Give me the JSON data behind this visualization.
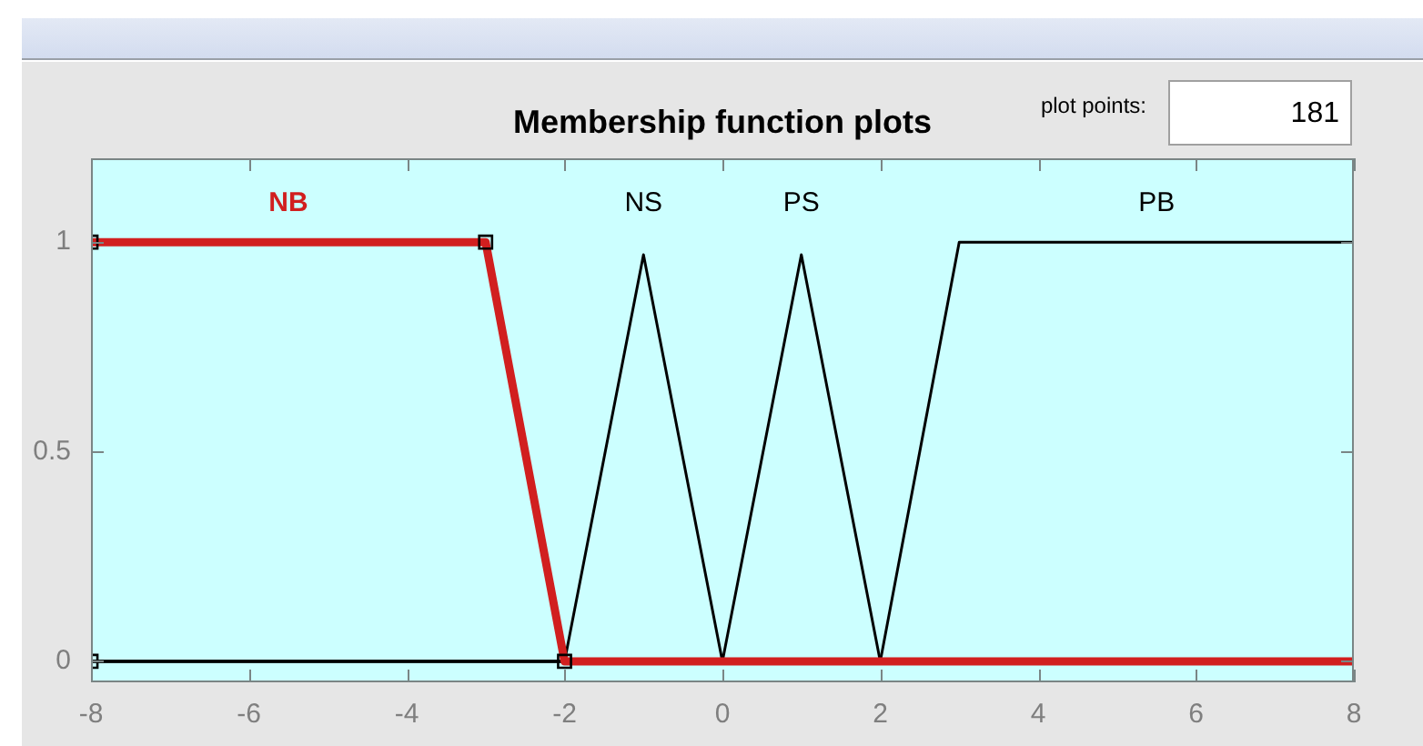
{
  "chart_data": {
    "type": "line",
    "title": "Membership function plots",
    "annotations": [
      "plot points:",
      "181"
    ],
    "xlim": [
      -8,
      8
    ],
    "xticks": [
      -8,
      -6,
      -4,
      -2,
      0,
      2,
      4,
      6,
      8
    ],
    "ylim": [
      -0.05,
      1.2
    ],
    "yticks": [
      0,
      0.5,
      1
    ],
    "series": [
      {
        "name": "NB",
        "color": "#d11f1f",
        "x": [
          -8,
          -3,
          -2,
          8
        ],
        "values": [
          1,
          1,
          0,
          0
        ]
      },
      {
        "name": "NS",
        "color": "#000000",
        "x": [
          -8,
          -2,
          -1,
          0,
          8
        ],
        "values": [
          0,
          0,
          0.97,
          0,
          0
        ]
      },
      {
        "name": "PS",
        "color": "#000000",
        "x": [
          -8,
          0,
          1,
          2,
          8
        ],
        "values": [
          0,
          0,
          0.97,
          0,
          0
        ]
      },
      {
        "name": "PB",
        "color": "#000000",
        "x": [
          -8,
          2,
          3,
          8
        ],
        "values": [
          0,
          0,
          1,
          1
        ]
      },
      {
        "type": "scatter",
        "color": "#000000",
        "marker": "square",
        "x": [
          -8,
          -8,
          -3,
          -2
        ],
        "values": [
          0,
          1,
          1,
          0
        ]
      }
    ]
  }
}
